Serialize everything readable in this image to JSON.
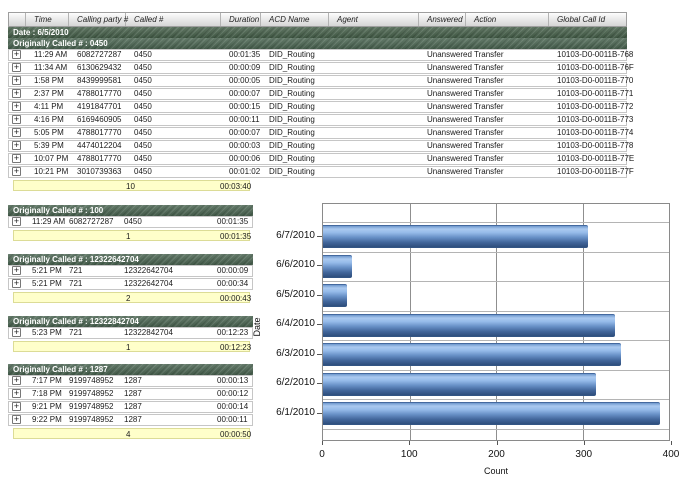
{
  "icons": {
    "expand": "+"
  },
  "table_headers": {
    "time": "Time",
    "calling": "Calling party #",
    "called": "Called #",
    "duration": "Duration",
    "acd": "ACD Name",
    "agent": "Agent",
    "answered": "Answered",
    "action": "Action",
    "global": "Global Call Id"
  },
  "top_table": {
    "date_band": "Date : 6/5/2010",
    "group_band": "Originally Called # : 0450",
    "rows": [
      {
        "time": "11:29 AM",
        "calling": "6082727287",
        "called": "0450",
        "duration": "00:01:35",
        "acd": "DID_Routing",
        "answered": "Unanswered",
        "action": "Transfer",
        "id": "10103-D0-0011B-768"
      },
      {
        "time": "11:34 AM",
        "calling": "6130629432",
        "called": "0450",
        "duration": "00:00:09",
        "acd": "DID_Routing",
        "answered": "Unanswered",
        "action": "Transfer",
        "id": "10103-D0-0011B-76F"
      },
      {
        "time": "1:58 PM",
        "calling": "8439999581",
        "called": "0450",
        "duration": "00:00:05",
        "acd": "DID_Routing",
        "answered": "Unanswered",
        "action": "Transfer",
        "id": "10103-D0-0011B-770"
      },
      {
        "time": "2:37 PM",
        "calling": "4788017770",
        "called": "0450",
        "duration": "00:00:07",
        "acd": "DID_Routing",
        "answered": "Unanswered",
        "action": "Transfer",
        "id": "10103-D0-0011B-771"
      },
      {
        "time": "4:11 PM",
        "calling": "4191847701",
        "called": "0450",
        "duration": "00:00:15",
        "acd": "DID_Routing",
        "answered": "Unanswered",
        "action": "Transfer",
        "id": "10103-D0-0011B-772"
      },
      {
        "time": "4:16 PM",
        "calling": "6169460905",
        "called": "0450",
        "duration": "00:00:11",
        "acd": "DID_Routing",
        "answered": "Unanswered",
        "action": "Transfer",
        "id": "10103-D0-0011B-773"
      },
      {
        "time": "5:05 PM",
        "calling": "4788017770",
        "called": "0450",
        "duration": "00:00:07",
        "acd": "DID_Routing",
        "answered": "Unanswered",
        "action": "Transfer",
        "id": "10103-D0-0011B-774"
      },
      {
        "time": "5:39 PM",
        "calling": "4474012204",
        "called": "0450",
        "duration": "00:00:03",
        "acd": "DID_Routing",
        "answered": "Unanswered",
        "action": "Transfer",
        "id": "10103-D0-0011B-778"
      },
      {
        "time": "10:07 PM",
        "calling": "4788017770",
        "called": "0450",
        "duration": "00:00:06",
        "acd": "DID_Routing",
        "answered": "Unanswered",
        "action": "Transfer",
        "id": "10103-D0-0011B-77E"
      },
      {
        "time": "10:21 PM",
        "calling": "3010739363",
        "called": "0450",
        "duration": "00:01:02",
        "acd": "DID_Routing",
        "answered": "Unanswered",
        "action": "Transfer",
        "id": "10103-D0-0011B-77F"
      }
    ],
    "summary": {
      "count": "10",
      "duration": "00:03:40"
    }
  },
  "groups": [
    {
      "header": "Originally Called # : 100",
      "rows": [
        {
          "time": "11:29 AM",
          "calling": "6082727287",
          "called": "0450",
          "duration": "00:01:35"
        }
      ],
      "summary": {
        "count": "1",
        "duration": "00:01:35"
      }
    },
    {
      "header": "Originally Called # : 12322642704",
      "rows": [
        {
          "time": "5:21 PM",
          "calling": "721",
          "called": "12322642704",
          "duration": "00:00:09"
        },
        {
          "time": "5:21 PM",
          "calling": "721",
          "called": "12322642704",
          "duration": "00:00:34"
        }
      ],
      "summary": {
        "count": "2",
        "duration": "00:00:43"
      }
    },
    {
      "header": "Originally Called # : 12322842704",
      "rows": [
        {
          "time": "5:23 PM",
          "calling": "721",
          "called": "12322842704",
          "duration": "00:12:23"
        }
      ],
      "summary": {
        "count": "1",
        "duration": "00:12:23"
      }
    },
    {
      "header": "Originally Called # : 1287",
      "rows": [
        {
          "time": "7:17 PM",
          "calling": "9199748952",
          "called": "1287",
          "duration": "00:00:13"
        },
        {
          "time": "7:18 PM",
          "calling": "9199748952",
          "called": "1287",
          "duration": "00:00:12"
        },
        {
          "time": "9:21 PM",
          "calling": "9199748952",
          "called": "1287",
          "duration": "00:00:14"
        },
        {
          "time": "9:22 PM",
          "calling": "9199748952",
          "called": "1287",
          "duration": "00:00:11"
        }
      ],
      "summary": {
        "count": "4",
        "duration": "00:00:50"
      }
    }
  ],
  "chart_data": {
    "type": "bar",
    "orientation": "horizontal",
    "title": "",
    "xlabel": "Count",
    "ylabel": "Date",
    "xlim": [
      0,
      400
    ],
    "xticks": [
      0,
      100,
      200,
      300,
      400
    ],
    "xtick_labels": [
      "0",
      "100",
      "200",
      "300",
      "400"
    ],
    "grid": true,
    "legend": "none",
    "categories": [
      "6/1/2010",
      "6/2/2010",
      "6/3/2010",
      "6/4/2010",
      "6/5/2010",
      "6/6/2010",
      "6/7/2010"
    ],
    "values": [
      390,
      316,
      345,
      338,
      28,
      33,
      306
    ],
    "points": [
      {
        "label": "6/7/2010",
        "value": 306
      },
      {
        "label": "6/6/2010",
        "value": 33
      },
      {
        "label": "6/5/2010",
        "value": 28
      },
      {
        "label": "6/4/2010",
        "value": 338
      },
      {
        "label": "6/3/2010",
        "value": 345
      },
      {
        "label": "6/2/2010",
        "value": 316
      },
      {
        "label": "6/1/2010",
        "value": 390
      }
    ],
    "bar_color_top": "#aac9f0",
    "bar_color_bottom": "#2e4e7c"
  }
}
